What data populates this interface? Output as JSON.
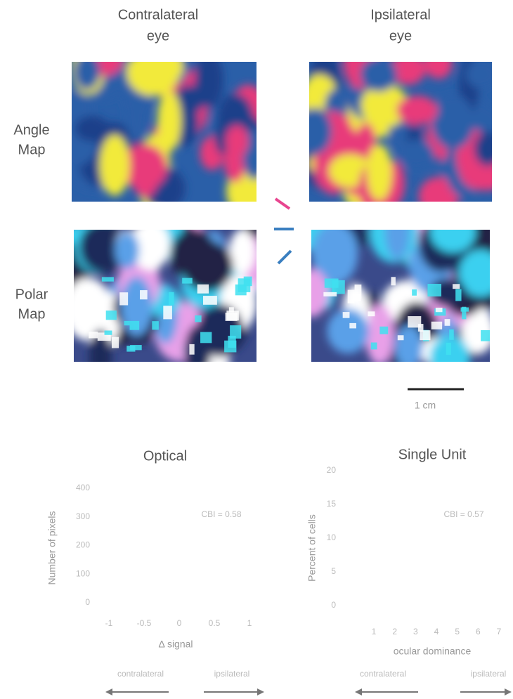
{
  "columns": [
    {
      "title": [
        "Contralateral",
        "eye"
      ]
    },
    {
      "title": [
        "Ipsilateral",
        "eye"
      ]
    }
  ],
  "rows": [
    {
      "label": [
        "Angle",
        "Map"
      ]
    },
    {
      "label": [
        "Polar",
        "Map"
      ]
    }
  ],
  "scale_bar": "1 cm",
  "optical": {
    "title": "Optical",
    "y_label": "Number of pixels",
    "yticks": [
      400,
      300,
      200,
      100,
      0
    ],
    "annotation": "CBI = 0.58",
    "xticks": [
      -1,
      -0.5,
      0,
      0.5,
      1
    ],
    "x_label": "Δ signal",
    "left_arrow": "contralateral",
    "right_arrow": "ipsilateral"
  },
  "single_unit": {
    "title": "Single Unit",
    "y_label": "Percent of cells",
    "yticks": [
      20,
      15,
      10,
      5,
      0
    ],
    "annotation": "CBI = 0.57",
    "xticks": [
      1,
      2,
      3,
      4,
      5,
      6,
      7
    ],
    "x_label": "ocular dominance",
    "left_arrow": "contralateral",
    "right_arrow": "ipsilateral"
  }
}
